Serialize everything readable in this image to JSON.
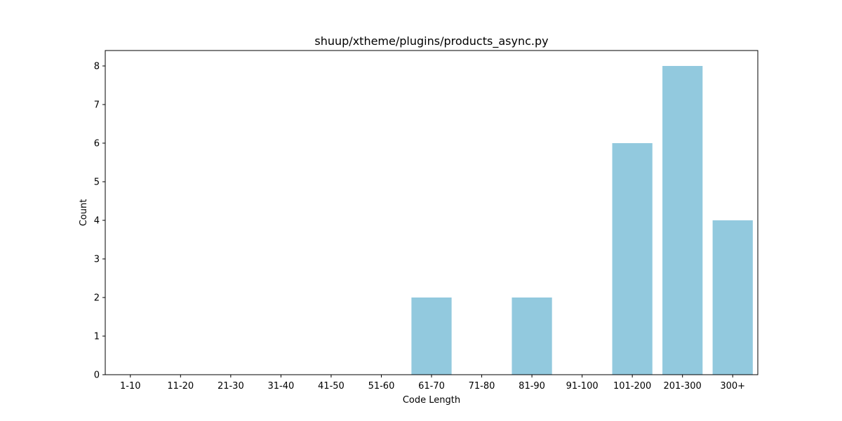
{
  "chart_data": {
    "type": "bar",
    "title": "shuup/xtheme/plugins/products_async.py",
    "xlabel": "Code Length",
    "ylabel": "Count",
    "categories": [
      "1-10",
      "11-20",
      "21-30",
      "31-40",
      "41-50",
      "51-60",
      "61-70",
      "71-80",
      "81-90",
      "91-100",
      "101-200",
      "201-300",
      "300+"
    ],
    "values": [
      0,
      0,
      0,
      0,
      0,
      0,
      2,
      0,
      2,
      0,
      6,
      8,
      4
    ],
    "yticks": [
      0,
      1,
      2,
      3,
      4,
      5,
      6,
      7,
      8
    ],
    "ylim": [
      0,
      8.4
    ],
    "bar_color": "#92c9de",
    "grid": false,
    "legend": "none"
  }
}
